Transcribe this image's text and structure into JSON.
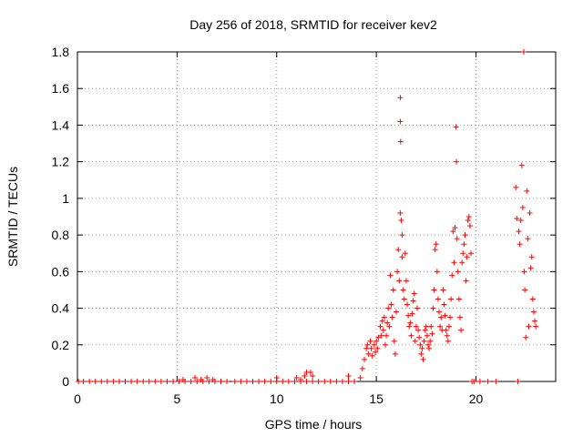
{
  "chart_data": {
    "type": "scatter",
    "title": "Day 256 of 2018, SRMTID for receiver kev2",
    "xlabel": "GPS time / hours",
    "ylabel": "SRMTID / TECUs",
    "xlim": [
      0,
      24
    ],
    "ylim": [
      0,
      1.8
    ],
    "x_ticks": [
      0,
      5,
      10,
      15,
      20
    ],
    "x_tick_labels": [
      "0",
      "5",
      "10",
      "15",
      "20"
    ],
    "y_ticks": [
      0,
      0.2,
      0.4,
      0.6,
      0.8,
      1.0,
      1.2,
      1.4,
      1.6,
      1.8
    ],
    "y_tick_labels": [
      "0",
      "0.2",
      "0.4",
      "0.6",
      "0.8",
      "1",
      "1.2",
      "1.4",
      "1.6",
      "1.8"
    ],
    "grid": true,
    "marker": "+",
    "marker_color": "#ff0000",
    "series": [
      {
        "name": "SRMTID",
        "points": [
          [
            0.05,
            0
          ],
          [
            0.3,
            0
          ],
          [
            0.6,
            0
          ],
          [
            0.9,
            0
          ],
          [
            1.2,
            0
          ],
          [
            1.5,
            0
          ],
          [
            1.8,
            0
          ],
          [
            2.1,
            0
          ],
          [
            2.4,
            0
          ],
          [
            2.7,
            0
          ],
          [
            3.0,
            0
          ],
          [
            3.3,
            0
          ],
          [
            3.6,
            0
          ],
          [
            3.9,
            0
          ],
          [
            4.2,
            0
          ],
          [
            4.5,
            0
          ],
          [
            4.8,
            0
          ],
          [
            5.1,
            0
          ],
          [
            5.4,
            0
          ],
          [
            5.7,
            0
          ],
          [
            6.0,
            0
          ],
          [
            6.3,
            0
          ],
          [
            6.6,
            0
          ],
          [
            6.9,
            0
          ],
          [
            7.2,
            0
          ],
          [
            7.5,
            0
          ],
          [
            7.9,
            0
          ],
          [
            5.3,
            0.01
          ],
          [
            5.9,
            0.02
          ],
          [
            6.2,
            0.01
          ],
          [
            6.5,
            0.02
          ],
          [
            6.8,
            0.01
          ],
          [
            8.2,
            0
          ],
          [
            8.5,
            0
          ],
          [
            8.8,
            0
          ],
          [
            9.1,
            0
          ],
          [
            9.4,
            0
          ],
          [
            9.7,
            0
          ],
          [
            10.0,
            0
          ],
          [
            10.3,
            0
          ],
          [
            10.6,
            0
          ],
          [
            10.9,
            0
          ],
          [
            11.2,
            0
          ],
          [
            11.5,
            0
          ],
          [
            11.8,
            0
          ],
          [
            12.1,
            0
          ],
          [
            12.4,
            0
          ],
          [
            12.7,
            0
          ],
          [
            13.0,
            0
          ],
          [
            13.3,
            0
          ],
          [
            13.6,
            0
          ],
          [
            13.9,
            0
          ],
          [
            10.0,
            0.02
          ],
          [
            11.0,
            0.02
          ],
          [
            11.2,
            0.01
          ],
          [
            11.4,
            0.03
          ],
          [
            11.5,
            0.05
          ],
          [
            11.7,
            0.05
          ],
          [
            11.8,
            0.03
          ],
          [
            13.6,
            0.03
          ],
          [
            14.2,
            0.02
          ],
          [
            14.3,
            0.07
          ],
          [
            14.4,
            0.12
          ],
          [
            14.5,
            0.18
          ],
          [
            14.55,
            0.2
          ],
          [
            14.6,
            0.15
          ],
          [
            14.7,
            0.22
          ],
          [
            14.75,
            0.18
          ],
          [
            14.8,
            0.14
          ],
          [
            14.9,
            0.2
          ],
          [
            14.95,
            0.16
          ],
          [
            15.0,
            0.22
          ],
          [
            15.05,
            0.18
          ],
          [
            15.1,
            0.24
          ],
          [
            15.2,
            0.3
          ],
          [
            15.25,
            0.25
          ],
          [
            15.3,
            0.33
          ],
          [
            15.35,
            0.28
          ],
          [
            15.4,
            0.35
          ],
          [
            15.45,
            0.2
          ],
          [
            15.5,
            0.25
          ],
          [
            15.55,
            0.32
          ],
          [
            15.6,
            0.4
          ],
          [
            15.65,
            0.3
          ],
          [
            15.7,
            0.58
          ],
          [
            15.75,
            0.42
          ],
          [
            15.8,
            0.35
          ],
          [
            15.85,
            0.5
          ],
          [
            15.9,
            0.22
          ],
          [
            15.95,
            0.15
          ],
          [
            16.0,
            0.38
          ],
          [
            16.05,
            0.6
          ],
          [
            16.1,
            0.72
          ],
          [
            16.15,
            0.55
          ],
          [
            16.2,
            0.92
          ],
          [
            16.2,
            1.55
          ],
          [
            16.2,
            1.42
          ],
          [
            16.22,
            1.31
          ],
          [
            16.25,
            0.88
          ],
          [
            16.3,
            0.8
          ],
          [
            16.3,
            0.68
          ],
          [
            16.35,
            0.5
          ],
          [
            16.4,
            0.45
          ],
          [
            16.45,
            0.7
          ],
          [
            16.5,
            0.55
          ],
          [
            16.55,
            0.42
          ],
          [
            16.6,
            0.36
          ],
          [
            16.65,
            0.3
          ],
          [
            16.7,
            0.32
          ],
          [
            16.75,
            0.25
          ],
          [
            16.8,
            0.37
          ],
          [
            16.85,
            0.44
          ],
          [
            16.9,
            0.48
          ],
          [
            16.95,
            0.22
          ],
          [
            17.0,
            0.3
          ],
          [
            17.05,
            0.4
          ],
          [
            17.1,
            0.28
          ],
          [
            17.15,
            0.24
          ],
          [
            17.2,
            0.2
          ],
          [
            17.25,
            0.15
          ],
          [
            17.3,
            0.18
          ],
          [
            17.35,
            0.12
          ],
          [
            17.4,
            0.22
          ],
          [
            17.45,
            0.28
          ],
          [
            17.5,
            0.3
          ],
          [
            17.55,
            0.25
          ],
          [
            17.6,
            0.2
          ],
          [
            17.65,
            0.18
          ],
          [
            17.7,
            0.22
          ],
          [
            17.75,
            0.3
          ],
          [
            17.8,
            0.26
          ],
          [
            17.85,
            0.4
          ],
          [
            17.9,
            0.5
          ],
          [
            17.95,
            0.72
          ],
          [
            18.0,
            0.75
          ],
          [
            18.05,
            0.6
          ],
          [
            18.1,
            0.45
          ],
          [
            18.15,
            0.38
          ],
          [
            18.2,
            0.3
          ],
          [
            18.25,
            0.35
          ],
          [
            18.3,
            0.28
          ],
          [
            18.35,
            0.5
          ],
          [
            18.4,
            0.42
          ],
          [
            18.45,
            0.36
          ],
          [
            18.5,
            0.28
          ],
          [
            18.55,
            0.25
          ],
          [
            18.6,
            0.22
          ],
          [
            18.65,
            0.3
          ],
          [
            18.7,
            0.35
          ],
          [
            18.75,
            0.45
          ],
          [
            18.8,
            0.58
          ],
          [
            18.85,
            0.82
          ],
          [
            18.9,
            0.65
          ],
          [
            18.95,
            0.84
          ],
          [
            19.0,
            1.39
          ],
          [
            19.02,
            1.2
          ],
          [
            19.05,
            0.78
          ],
          [
            19.1,
            0.6
          ],
          [
            19.15,
            0.45
          ],
          [
            19.2,
            0.35
          ],
          [
            19.25,
            0.28
          ],
          [
            19.3,
            0.65
          ],
          [
            19.35,
            0.7
          ],
          [
            19.4,
            0.75
          ],
          [
            19.45,
            0.8
          ],
          [
            19.5,
            0.55
          ],
          [
            19.55,
            0.68
          ],
          [
            19.6,
            0.88
          ],
          [
            19.65,
            0.9
          ],
          [
            19.7,
            0.85
          ],
          [
            19.75,
            0.7
          ],
          [
            19.8,
            0
          ],
          [
            19.9,
            0
          ],
          [
            20.2,
            0
          ],
          [
            20.6,
            0
          ],
          [
            21.0,
            0
          ],
          [
            22.0,
            1.06
          ],
          [
            22.05,
            0.89
          ],
          [
            22.1,
            0
          ],
          [
            22.15,
            0.82
          ],
          [
            22.2,
            0.75
          ],
          [
            22.25,
            0.88
          ],
          [
            22.3,
            1.18
          ],
          [
            22.35,
            0.95
          ],
          [
            22.4,
            1.8
          ],
          [
            22.42,
            0.6
          ],
          [
            22.45,
            0.5
          ],
          [
            22.5,
            0.24
          ],
          [
            22.55,
            1.04
          ],
          [
            22.6,
            0.78
          ],
          [
            22.65,
            0.3
          ],
          [
            22.7,
            0.92
          ],
          [
            22.75,
            0.62
          ],
          [
            22.8,
            0.68
          ],
          [
            22.85,
            0.45
          ],
          [
            22.9,
            0.38
          ],
          [
            22.95,
            0.33
          ],
          [
            23.0,
            0.3
          ]
        ]
      }
    ]
  }
}
